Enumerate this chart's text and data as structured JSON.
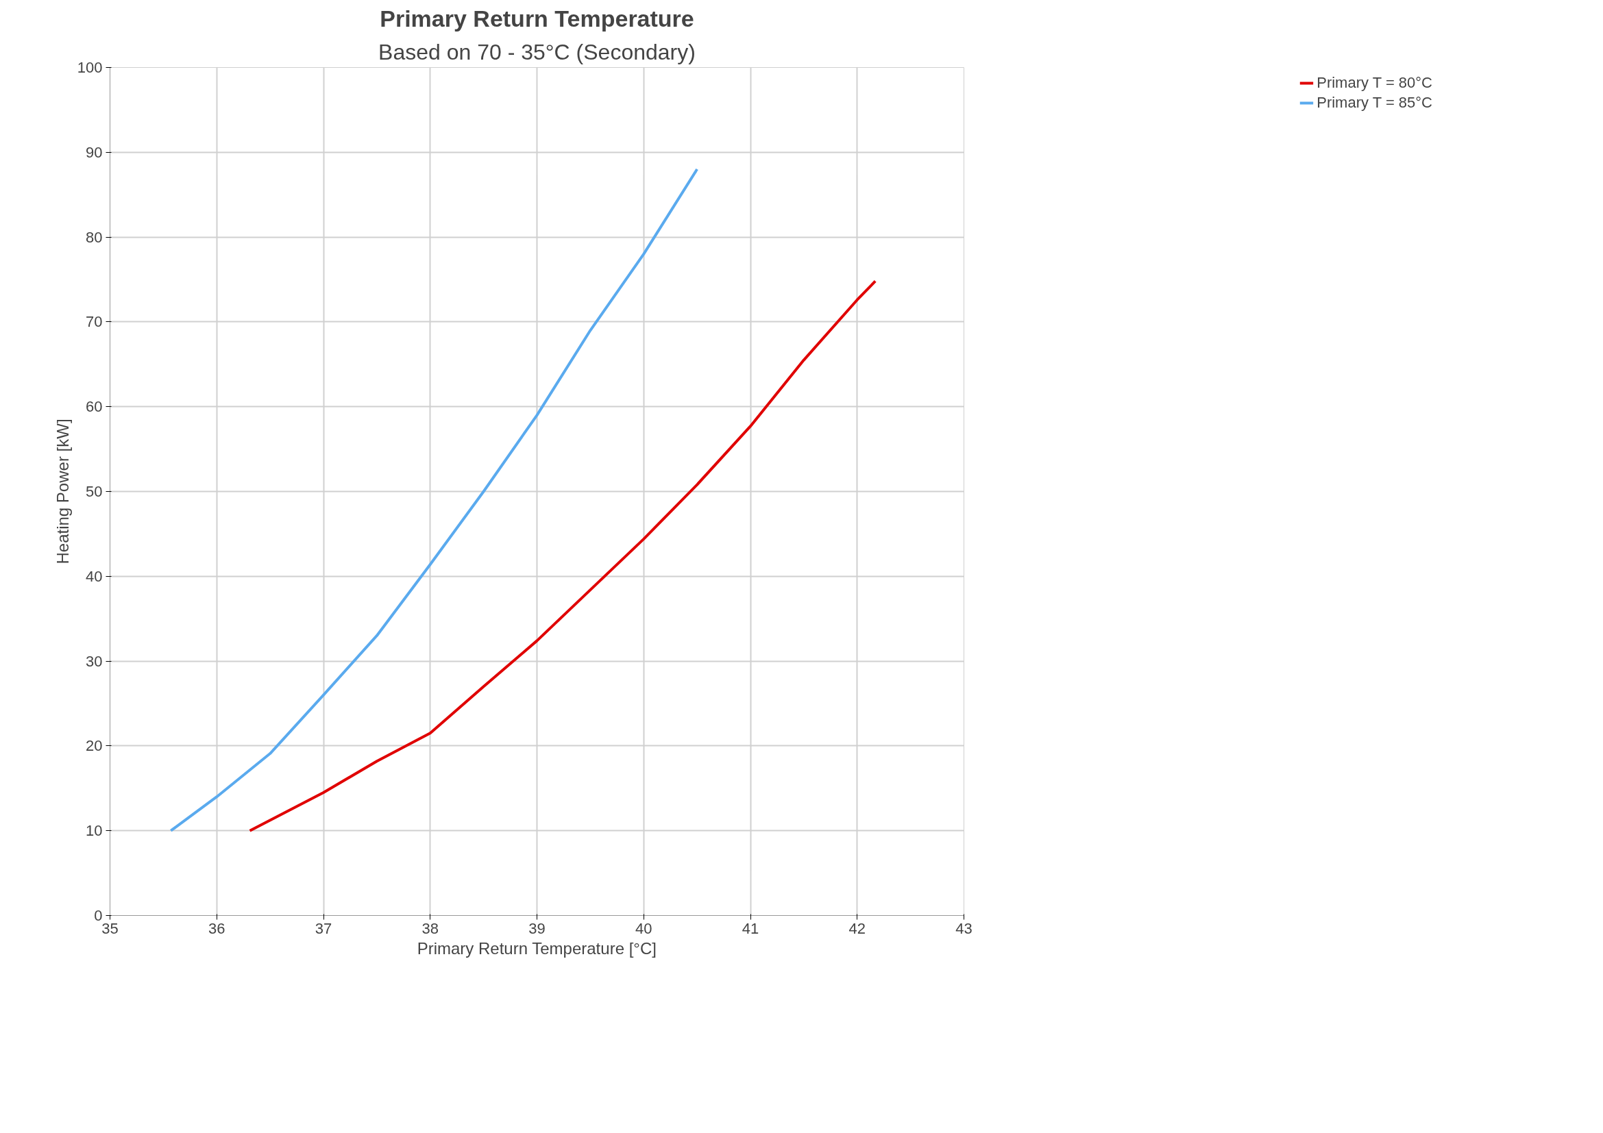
{
  "chart_data": {
    "type": "line",
    "title": "Primary Return Temperature",
    "subtitle": "Based on 70 - 35°C (Secondary)",
    "xlabel": "Primary Return Temperature [°C]",
    "ylabel": "Heating Power [kW]",
    "xlim": [
      35,
      43
    ],
    "xticks": [
      35,
      36,
      37,
      38,
      39,
      40,
      41,
      42,
      43
    ],
    "ylim": [
      0,
      100
    ],
    "yticks": [
      0,
      10,
      20,
      30,
      40,
      50,
      60,
      70,
      80,
      90,
      100
    ],
    "grid": true,
    "legend": "right",
    "marker": "none",
    "line_style": "solid",
    "series": [
      {
        "name": "Primary T = 80°C",
        "color": "#e00000",
        "x": [
          36.31,
          37.0,
          37.5,
          38.0,
          38.5,
          39.0,
          39.5,
          40.0,
          40.5,
          41.0,
          41.5,
          42.0,
          42.17
        ],
        "values": [
          10,
          14.5,
          18.2,
          21.5,
          27,
          32.4,
          38.4,
          44.4,
          50.8,
          57.7,
          65.5,
          72.6,
          74.8
        ]
      },
      {
        "name": "Primary T = 85°C",
        "color": "#5aaaee",
        "x": [
          35.57,
          36.0,
          36.5,
          37.0,
          37.5,
          38.0,
          38.5,
          39.0,
          39.5,
          40.0,
          40.5
        ],
        "values": [
          10,
          14,
          19.1,
          26,
          33,
          41.4,
          50,
          59,
          69,
          78,
          88
        ]
      }
    ]
  }
}
